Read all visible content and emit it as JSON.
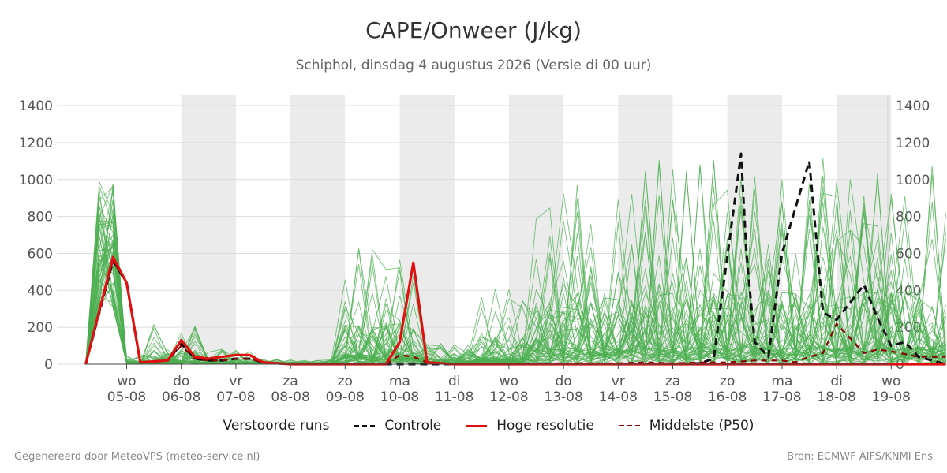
{
  "header": {
    "title": "CAPE/Onweer (J/kg)",
    "subtitle": "Schiphol, dinsdag  4 augustus 2026 (Versie di 00 uur)"
  },
  "footer": {
    "left": "Gegenereerd door MeteoVPS (meteo-service.nl)",
    "right": "Bron: ECMWF AIFS/KNMI Ens"
  },
  "legend": {
    "perturbed": "Verstoorde runs",
    "control": "Controle",
    "hires": "Hoge resolutie",
    "median": "Middelste (P50)"
  },
  "colors": {
    "perturbed": "#4caf50",
    "control": "#111111",
    "hires": "#e01010",
    "median": "#8b0000",
    "weekend_band": "#ebebeb",
    "grid": "#dddddd"
  },
  "chart_data": {
    "type": "line",
    "x_unit": "days since 04-08-2026 00 UTC",
    "xlim": [
      -0.73,
      15
    ],
    "ylim": [
      0,
      1460
    ],
    "yticks": [
      0,
      200,
      400,
      600,
      800,
      1000,
      1200,
      1400
    ],
    "grid": true,
    "shaded_bands": [
      [
        1,
        2
      ],
      [
        3,
        4
      ],
      [
        5,
        6
      ],
      [
        7,
        8
      ],
      [
        9,
        10
      ],
      [
        11,
        12
      ],
      [
        13,
        14
      ]
    ],
    "day_labels": [
      "wo",
      "do",
      "vr",
      "za",
      "zo",
      "ma",
      "di",
      "wo",
      "do",
      "vr",
      "za",
      "zo",
      "ma",
      "di",
      "wo"
    ],
    "date_labels": [
      "05-08",
      "06-08",
      "07-08",
      "08-08",
      "09-08",
      "10-08",
      "11-08",
      "12-08",
      "13-08",
      "14-08",
      "15-08",
      "16-08",
      "17-08",
      "18-08",
      "19-08"
    ],
    "legend_position": "bottom",
    "series": [
      {
        "name": "Controle",
        "style": "dashed",
        "points": [
          [
            -0.75,
            0
          ],
          [
            -0.25,
            560
          ],
          [
            0,
            440
          ],
          [
            0.25,
            10
          ],
          [
            0.75,
            20
          ],
          [
            1,
            110
          ],
          [
            1.25,
            30
          ],
          [
            1.5,
            20
          ],
          [
            1.75,
            20
          ],
          [
            2,
            30
          ],
          [
            2.25,
            30
          ],
          [
            2.5,
            10
          ],
          [
            3,
            0
          ],
          [
            4,
            0
          ],
          [
            5,
            0
          ],
          [
            6,
            0
          ],
          [
            7,
            0
          ],
          [
            7.5,
            0
          ],
          [
            8,
            0
          ],
          [
            8.5,
            0
          ],
          [
            9,
            0
          ],
          [
            9.5,
            0
          ],
          [
            10,
            0
          ],
          [
            10.5,
            5
          ],
          [
            10.75,
            30
          ],
          [
            11.25,
            1140
          ],
          [
            11.35,
            600
          ],
          [
            11.5,
            120
          ],
          [
            11.75,
            40
          ],
          [
            12,
            600
          ],
          [
            12.5,
            1100
          ],
          [
            12.75,
            280
          ],
          [
            13,
            240
          ],
          [
            13.5,
            430
          ],
          [
            13.75,
            250
          ],
          [
            14,
            100
          ],
          [
            14.25,
            120
          ],
          [
            14.5,
            40
          ],
          [
            14.75,
            20
          ],
          [
            15,
            0
          ]
        ]
      },
      {
        "name": "Hoge resolutie",
        "style": "solid",
        "points": [
          [
            -0.75,
            0
          ],
          [
            -0.25,
            580
          ],
          [
            0,
            440
          ],
          [
            0.25,
            10
          ],
          [
            0.75,
            20
          ],
          [
            1,
            130
          ],
          [
            1.25,
            40
          ],
          [
            1.5,
            30
          ],
          [
            1.75,
            40
          ],
          [
            2,
            50
          ],
          [
            2.25,
            50
          ],
          [
            2.5,
            10
          ],
          [
            3,
            0
          ],
          [
            4,
            0
          ],
          [
            4.75,
            0
          ],
          [
            5,
            120
          ],
          [
            5.25,
            550
          ],
          [
            5.5,
            10
          ],
          [
            6,
            0
          ],
          [
            6.5,
            0
          ],
          [
            7,
            0
          ],
          [
            7.5,
            0
          ],
          [
            8,
            0
          ],
          [
            8.5,
            0
          ],
          [
            9,
            0
          ],
          [
            9.5,
            0
          ],
          [
            10,
            0
          ],
          [
            10.5,
            0
          ],
          [
            11,
            0
          ],
          [
            11.5,
            0
          ],
          [
            12,
            0
          ],
          [
            12.5,
            0
          ],
          [
            13,
            0
          ],
          [
            13.5,
            0
          ],
          [
            14,
            0
          ],
          [
            14.5,
            0
          ],
          [
            15,
            0
          ]
        ]
      },
      {
        "name": "Middelste (P50)",
        "style": "dashed",
        "points": [
          [
            -0.75,
            0
          ],
          [
            -0.25,
            560
          ],
          [
            0,
            440
          ],
          [
            0.25,
            10
          ],
          [
            0.75,
            20
          ],
          [
            1,
            100
          ],
          [
            1.25,
            30
          ],
          [
            1.5,
            20
          ],
          [
            1.75,
            20
          ],
          [
            2,
            30
          ],
          [
            2.25,
            30
          ],
          [
            2.5,
            10
          ],
          [
            3,
            0
          ],
          [
            4,
            0
          ],
          [
            4.75,
            0
          ],
          [
            5,
            50
          ],
          [
            5.25,
            40
          ],
          [
            5.5,
            10
          ],
          [
            6,
            0
          ],
          [
            7,
            0
          ],
          [
            8,
            5
          ],
          [
            8.5,
            5
          ],
          [
            9,
            5
          ],
          [
            9.5,
            10
          ],
          [
            10,
            5
          ],
          [
            10.5,
            10
          ],
          [
            11,
            10
          ],
          [
            11.5,
            20
          ],
          [
            12,
            20
          ],
          [
            12.25,
            10
          ],
          [
            12.5,
            40
          ],
          [
            12.75,
            60
          ],
          [
            13,
            220
          ],
          [
            13.5,
            60
          ],
          [
            13.75,
            80
          ],
          [
            14,
            70
          ],
          [
            14.5,
            40
          ],
          [
            15,
            40
          ]
        ]
      }
    ],
    "perturbed_members": 50
  }
}
